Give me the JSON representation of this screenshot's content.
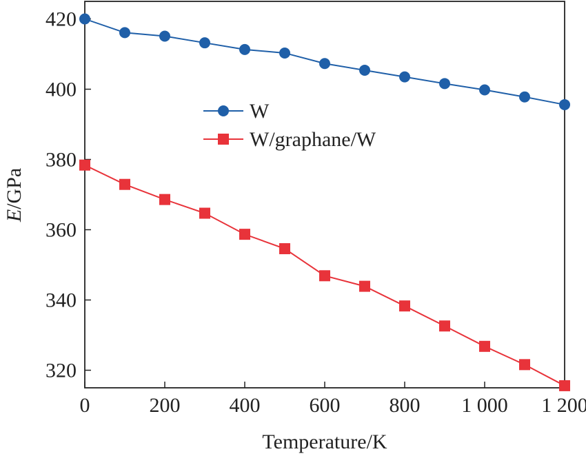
{
  "chart_data": {
    "type": "line",
    "xlabel": "Temperature/K",
    "ylabel": "E/GPa",
    "ylabel_parts": {
      "symbol": "E",
      "unit": "/GPa"
    },
    "xlim": [
      0,
      1200
    ],
    "ylim": [
      315,
      425
    ],
    "x_ticks": [
      0,
      200,
      400,
      600,
      800,
      1000,
      1200
    ],
    "x_tick_labels": [
      "0",
      "200",
      "400",
      "600",
      "800",
      "1 000",
      "1 200"
    ],
    "y_ticks": [
      320,
      340,
      360,
      380,
      400,
      420
    ],
    "y_tick_labels": [
      "320",
      "340",
      "360",
      "380",
      "400",
      "420"
    ],
    "grid": false,
    "legend_position": "upper-middle",
    "x": [
      0,
      100,
      200,
      300,
      400,
      500,
      600,
      700,
      800,
      900,
      1000,
      1100,
      1200
    ],
    "series": [
      {
        "name": "W",
        "color": "#1f5fa8",
        "marker": "circle",
        "values": [
          420.0,
          416.1,
          415.1,
          413.2,
          411.3,
          410.3,
          407.3,
          405.4,
          403.5,
          401.6,
          399.8,
          397.8,
          395.6
        ]
      },
      {
        "name": "W/graphane/W",
        "color": "#e8333a",
        "marker": "square",
        "values": [
          378.4,
          372.9,
          368.6,
          364.7,
          358.7,
          354.6,
          346.9,
          343.9,
          338.3,
          332.6,
          326.8,
          321.6,
          315.6
        ]
      }
    ]
  }
}
